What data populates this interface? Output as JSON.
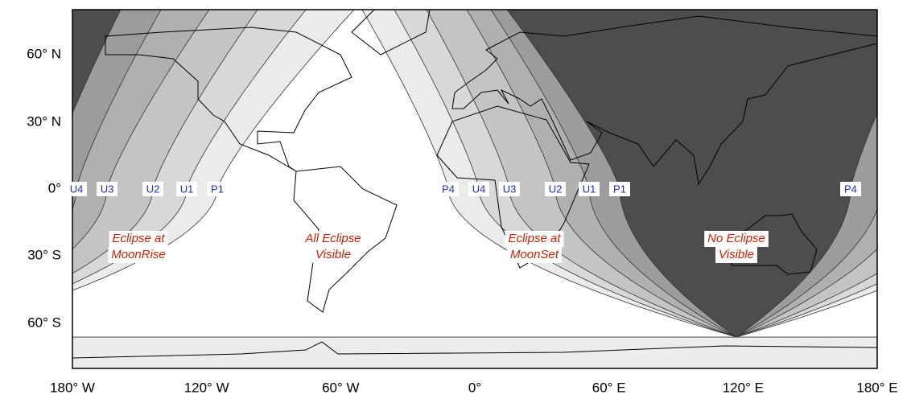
{
  "axes": {
    "lat_labels": [
      "60° N",
      "30° N",
      "0°",
      "30° S",
      "60° S"
    ],
    "lon_labels": [
      "180° W",
      "120° W",
      "60° W",
      "0°",
      "60° E",
      "120° E",
      "180° E"
    ]
  },
  "contact_labels": [
    "U4",
    "U3",
    "U2",
    "U1",
    "P1",
    "P4",
    "U4",
    "U3",
    "U2",
    "U1",
    "P1",
    "P4"
  ],
  "regions": [
    {
      "lines": [
        "Eclipse at",
        "MoonRise"
      ]
    },
    {
      "lines": [
        "All Eclipse",
        "Visible"
      ]
    },
    {
      "lines": [
        "Eclipse at",
        "MoonSet"
      ]
    },
    {
      "lines": [
        "No Eclipse",
        "Visible"
      ]
    }
  ]
}
